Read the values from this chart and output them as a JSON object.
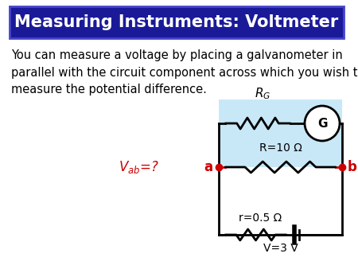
{
  "title": "Measuring Instruments: Voltmeter",
  "title_bg": "#1a1a99",
  "title_color": "#ffffff",
  "title_border": "#4444cc",
  "body_text": "You can measure a voltage by placing a galvanometer in\nparallel with the circuit component across which you wish to\nmeasure the potential difference.",
  "R_label": "R=10 Ω",
  "r_label": "r=0.5 Ω",
  "V_label": "V=3 V",
  "G_label": "G",
  "a_label": "a",
  "b_label": "b",
  "bg_color": "#ffffff",
  "voltmeter_bg": "#c8e8f8",
  "circuit_color": "#000000",
  "red_color": "#cc0000",
  "body_fontsize": 10.5,
  "title_fontsize": 15,
  "circuit_lw": 2.0
}
